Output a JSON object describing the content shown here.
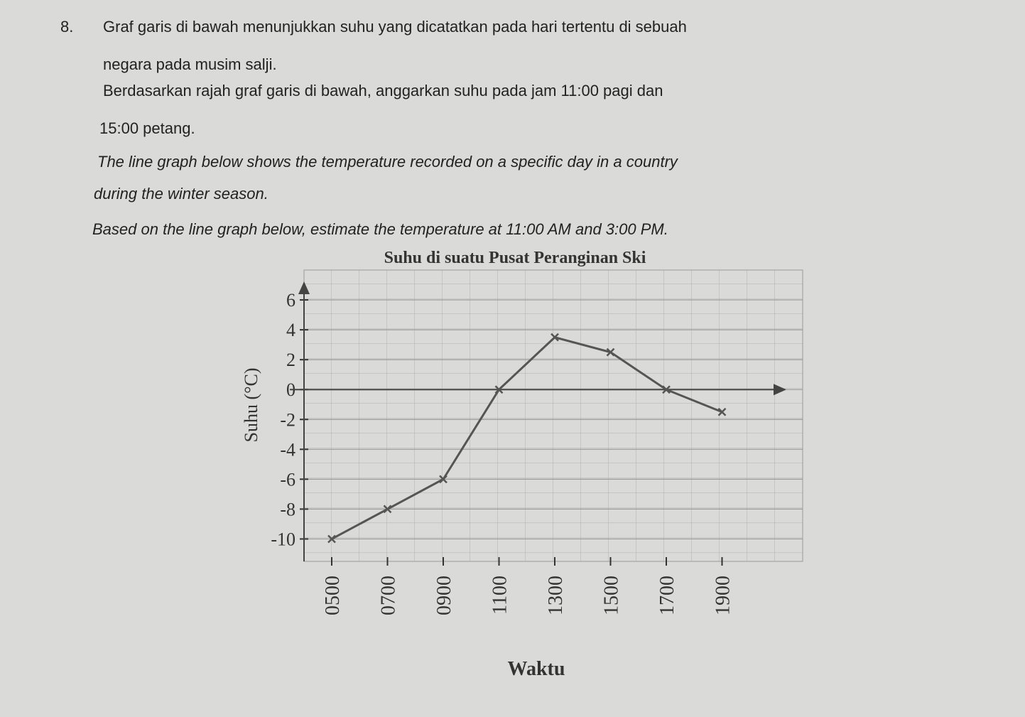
{
  "question": {
    "number": "8.",
    "lines": [
      "Graf garis di bawah menunjukkan suhu yang dicatatkan pada hari tertentu di sebuah",
      "negara pada musim salji.",
      "Berdasarkan rajah graf garis di bawah, anggarkan suhu pada jam 11:00 pagi dan",
      "15:00 petang."
    ],
    "english_lines": [
      "The line graph below shows the temperature recorded on a specific day in a country",
      "during the winter season.",
      "Based on the line graph below, estimate the temperature at 11:00 AM and 3:00 PM."
    ]
  },
  "chart_data": {
    "type": "line",
    "title": "Suhu di suatu Pusat Peranginan Ski",
    "x_label": "Waktu",
    "y_label": "Suhu (°C)",
    "categories": [
      "0500",
      "0700",
      "0900",
      "1100",
      "1300",
      "1500",
      "1700",
      "1900"
    ],
    "values": [
      -10,
      -8,
      -6,
      0,
      3.5,
      2.5,
      0,
      -1.5
    ],
    "color": "#555555",
    "ylim": [
      -11.5,
      8
    ],
    "yticks": [
      6,
      4,
      2,
      0,
      -2,
      -4,
      -6,
      -8,
      -10
    ],
    "grid": true
  }
}
